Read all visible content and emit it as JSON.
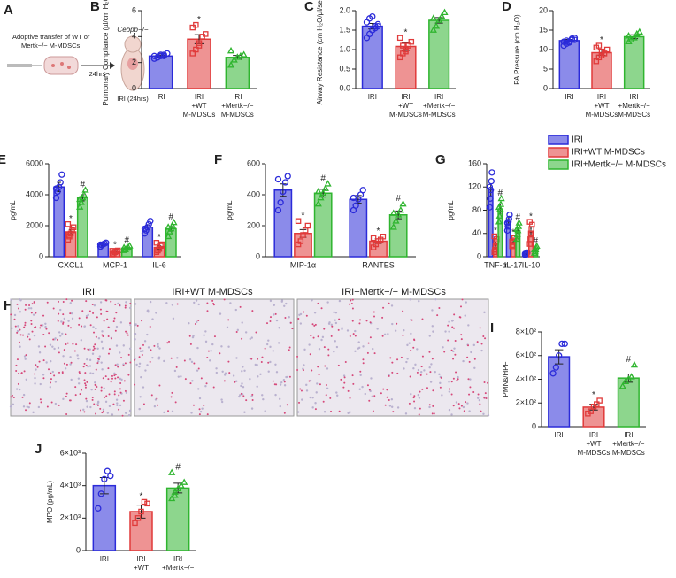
{
  "diagram": {
    "panel": "A",
    "line1": "Adoptive transfer of WT or",
    "line2": "Mertk−/− M-MDSCs",
    "time": "24hrs",
    "mouse": "Cebpb−/−",
    "label": "IRI (24hrs)"
  },
  "histology": {
    "panel": "H",
    "labels": [
      "IRI",
      "IRI+WT M-MDSCs",
      "IRI+Mertk−/− M-MDSCs"
    ]
  },
  "chart_data": [
    {
      "type": "bar",
      "panel": "B",
      "ylabel": "Pulmonary Compliance (µl/cm H₂O)",
      "categories": [
        [
          "IRI"
        ],
        [
          "IRI",
          "+WT",
          "M-MDSCs"
        ],
        [
          "IRI",
          "+Mertk−/−",
          "M-MDSCs"
        ]
      ],
      "colors": [
        "#2b2bd9",
        "#e03a3a",
        "#2fb52f"
      ],
      "values": [
        2.5,
        3.8,
        2.4
      ],
      "errors": [
        0.08,
        0.35,
        0.15
      ],
      "points": [
        [
          2.3,
          2.4,
          2.5,
          2.6,
          2.7,
          2.5,
          2.4,
          2.6,
          2.5
        ],
        [
          2.7,
          3.0,
          3.5,
          4.0,
          4.2,
          4.7,
          4.9,
          3.3
        ],
        [
          1.8,
          2.2,
          2.4,
          2.5,
          2.6,
          2.9
        ]
      ],
      "markers": [
        null,
        "*",
        null
      ],
      "ylim": [
        0,
        6
      ],
      "yticks": [
        0,
        2,
        4,
        6
      ]
    },
    {
      "type": "bar",
      "panel": "C",
      "ylabel": "Airway Resistance (cm H₂O/µl/sec)",
      "categories": [
        [
          "IRI"
        ],
        [
          "IRI",
          "+WT",
          "M-MDSCs"
        ],
        [
          "IRI",
          "+Mertk−/−",
          "M-MDSCs"
        ]
      ],
      "colors": [
        "#2b2bd9",
        "#e03a3a",
        "#2fb52f"
      ],
      "values": [
        1.6,
        1.08,
        1.75
      ],
      "errors": [
        0.07,
        0.1,
        0.07
      ],
      "points": [
        [
          1.3,
          1.4,
          1.5,
          1.6,
          1.65,
          1.7,
          1.8,
          1.85,
          1.55,
          1.6
        ],
        [
          0.8,
          0.9,
          1.0,
          1.1,
          1.2,
          1.3,
          1.1,
          0.95
        ],
        [
          1.5,
          1.6,
          1.75,
          1.85,
          1.95,
          1.8
        ]
      ],
      "markers": [
        null,
        "*",
        null
      ],
      "ylim": [
        0,
        2
      ],
      "yticks": [
        {
          "value": 0,
          "label": "0.0"
        },
        0.5,
        {
          "value": 1,
          "label": "1.0"
        },
        1.5,
        {
          "value": 2,
          "label": "2.0"
        }
      ]
    },
    {
      "type": "bar",
      "panel": "D",
      "ylabel": "PA Pressure (cm H₂O)",
      "categories": [
        [
          "IRI"
        ],
        [
          "IRI",
          "+WT",
          "M-MDSCs"
        ],
        [
          "IRI",
          "+Mertk−/−",
          "M-MDSCs"
        ]
      ],
      "colors": [
        "#2b2bd9",
        "#e03a3a",
        "#2fb52f"
      ],
      "values": [
        12.3,
        9.2,
        13.3
      ],
      "errors": [
        0.3,
        0.7,
        0.5
      ],
      "points": [
        [
          11,
          11.5,
          12,
          12.5,
          13,
          12,
          12.3,
          11.8,
          12.8,
          12.5
        ],
        [
          7,
          8,
          8.5,
          9,
          10,
          10.5,
          11,
          9.5
        ],
        [
          12,
          12.5,
          13,
          14,
          14.5,
          13.5
        ]
      ],
      "markers": [
        null,
        "*",
        null
      ],
      "ylim": [
        0,
        20
      ],
      "yticks": [
        0,
        5,
        10,
        15,
        20
      ]
    },
    {
      "type": "bar",
      "panel": "E",
      "ylabel": "pg/mL",
      "categories": [
        "CXCL1",
        "MCP-1",
        "IL-6"
      ],
      "ylim": [
        0,
        6000
      ],
      "yticks": [
        0,
        2000,
        4000,
        6000
      ],
      "series": [
        {
          "name": "IRI",
          "color": "#2b2bd9",
          "values": [
            4500,
            800,
            1900
          ],
          "errors": [
            300,
            80,
            150
          ],
          "points": [
            [
              3800,
              4200,
              4500,
              4800,
              5300,
              4400
            ],
            [
              650,
              750,
              800,
              850,
              900,
              780
            ],
            [
              1500,
              1700,
              1900,
              2100,
              2300,
              1800
            ]
          ],
          "markers": [
            null,
            null,
            null
          ]
        },
        {
          "name": "IRI+WT M-MDSCs",
          "color": "#e03a3a",
          "values": [
            1600,
            300,
            600
          ],
          "errors": [
            150,
            50,
            100
          ],
          "points": [
            [
              1100,
              1300,
              1500,
              1700,
              1900,
              2100,
              1400
            ],
            [
              150,
              200,
              300,
              350,
              400,
              380
            ],
            [
              300,
              400,
              500,
              700,
              800,
              900
            ]
          ],
          "markers": [
            "*",
            "*",
            "*"
          ]
        },
        {
          "name": "IRI+Mertk−/− M-MDSCs",
          "color": "#2fb52f",
          "values": [
            3800,
            550,
            1800
          ],
          "errors": [
            200,
            60,
            150
          ],
          "points": [
            [
              3200,
              3500,
              3800,
              4000,
              4300,
              3700
            ],
            [
              400,
              450,
              550,
              600,
              700,
              580
            ],
            [
              1300,
              1600,
              1800,
              2000,
              2200,
              1900
            ]
          ],
          "markers": [
            "#",
            "#",
            "#"
          ]
        }
      ]
    },
    {
      "type": "bar",
      "panel": "F",
      "ylabel": "pg/mL",
      "categories": [
        "MIP-1α",
        "RANTES"
      ],
      "ylim": [
        0,
        600
      ],
      "yticks": [
        0,
        200,
        400,
        600
      ],
      "series": [
        {
          "name": "IRI",
          "color": "#2b2bd9",
          "values": [
            430,
            370
          ],
          "errors": [
            40,
            25
          ],
          "points": [
            [
              300,
              350,
              420,
              480,
              520,
              500
            ],
            [
              300,
              330,
              370,
              400,
              430,
              380
            ]
          ],
          "markers": [
            null,
            null
          ]
        },
        {
          "name": "IRI+WT M-MDSCs",
          "color": "#e03a3a",
          "values": [
            150,
            100
          ],
          "errors": [
            25,
            15
          ],
          "points": [
            [
              80,
              100,
              140,
              170,
              200,
              230
            ],
            [
              60,
              80,
              100,
              110,
              130,
              120
            ]
          ],
          "markers": [
            "*",
            "*"
          ]
        },
        {
          "name": "IRI+Mertk−/− M-MDSCs",
          "color": "#2fb52f",
          "values": [
            410,
            270
          ],
          "errors": [
            25,
            25
          ],
          "points": [
            [
              340,
              380,
              410,
              440,
              470,
              420
            ],
            [
              190,
              230,
              270,
              300,
              340,
              280
            ]
          ],
          "markers": [
            "#",
            "#"
          ]
        }
      ]
    },
    {
      "type": "bar",
      "panel": "G",
      "ylabel": "pg/mL",
      "categories": [
        "TNF-α",
        "IL-17",
        "IL-10"
      ],
      "ylim": [
        0,
        160
      ],
      "yticks": [
        0,
        40,
        80,
        120,
        160
      ],
      "legend": "top-right",
      "series": [
        {
          "name": "IRI",
          "color": "#2b2bd9",
          "values": [
            115,
            60,
            5
          ],
          "errors": [
            10,
            6,
            1
          ],
          "points": [
            [
              85,
              100,
              115,
              130,
              145,
              120
            ],
            [
              45,
              52,
              60,
              65,
              72,
              58
            ],
            [
              3,
              4,
              5,
              6,
              7,
              5
            ]
          ],
          "markers": [
            null,
            null,
            null
          ]
        },
        {
          "name": "IRI+WT M-MDSCs",
          "color": "#e03a3a",
          "values": [
            20,
            25,
            42
          ],
          "errors": [
            5,
            3,
            7
          ],
          "points": [
            [
              8,
              12,
              18,
              25,
              30,
              35
            ],
            [
              18,
              20,
              25,
              28,
              32,
              26
            ],
            [
              22,
              30,
              40,
              48,
              55,
              60
            ]
          ],
          "markers": [
            "*",
            "*",
            "*"
          ]
        },
        {
          "name": "IRI+Mertk−/− M-MDSCs",
          "color": "#2fb52f",
          "values": [
            82,
            45,
            12
          ],
          "errors": [
            8,
            5,
            2
          ],
          "points": [
            [
              60,
              70,
              82,
              90,
              100,
              85
            ],
            [
              30,
              38,
              45,
              52,
              58,
              47
            ],
            [
              6,
              9,
              12,
              15,
              18,
              12
            ]
          ],
          "markers": [
            "#",
            "#",
            "#"
          ]
        }
      ]
    },
    {
      "type": "bar",
      "panel": "I",
      "ylabel": "PMNs/HPF",
      "categories": [
        [
          "IRI"
        ],
        [
          "IRI",
          "+WT",
          "M-MDSCs"
        ],
        [
          "IRI",
          "+Mertk−/−",
          "M-MDSCs"
        ]
      ],
      "colors": [
        "#2b2bd9",
        "#e03a3a",
        "#2fb52f"
      ],
      "values": [
        590,
        165,
        410
      ],
      "errors": [
        60,
        25,
        35
      ],
      "points": [
        [
          450,
          500,
          600,
          700,
          700
        ],
        [
          110,
          130,
          170,
          190,
          220
        ],
        [
          340,
          380,
          400,
          420,
          520
        ]
      ],
      "markers": [
        null,
        "*",
        "#"
      ],
      "ylim": [
        0,
        800
      ],
      "yticks": [
        0,
        {
          "value": 200,
          "label": "2×10²"
        },
        {
          "value": 400,
          "label": "4×10²"
        },
        {
          "value": 600,
          "label": "6×10²"
        },
        {
          "value": 800,
          "label": "8×10²"
        }
      ]
    },
    {
      "type": "bar",
      "panel": "J",
      "ylabel": "MPO (pg/mL)",
      "categories": [
        [
          "IRI"
        ],
        [
          "IRI",
          "+WT",
          "M-MDSCs"
        ],
        [
          "IRI",
          "+Mertk−/−",
          "M-MDSCs"
        ]
      ],
      "colors": [
        "#2b2bd9",
        "#e03a3a",
        "#2fb52f"
      ],
      "values": [
        4000,
        2400,
        3850
      ],
      "errors": [
        500,
        400,
        300
      ],
      "points": [
        [
          2600,
          3500,
          4400,
          4900,
          4600
        ],
        [
          1700,
          2000,
          2400,
          3000,
          2900
        ],
        [
          3200,
          3400,
          3800,
          4000,
          4200,
          4800,
          3600
        ]
      ],
      "markers": [
        null,
        "*",
        "#"
      ],
      "ylim": [
        0,
        6000
      ],
      "yticks": [
        0,
        {
          "value": 2000,
          "label": "2×10³"
        },
        {
          "value": 4000,
          "label": "4×10³"
        },
        {
          "value": 6000,
          "label": "6×10³"
        }
      ]
    }
  ]
}
